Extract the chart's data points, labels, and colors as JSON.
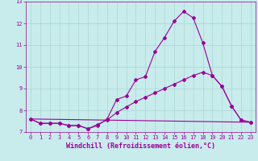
{
  "title": "",
  "xlabel": "Windchill (Refroidissement éolien,°C)",
  "ylabel": "",
  "background_color": "#c8ecec",
  "grid_color": "#aad4d4",
  "line_color": "#990099",
  "xlim": [
    -0.5,
    23.5
  ],
  "ylim": [
    7.0,
    13.0
  ],
  "xticks": [
    0,
    1,
    2,
    3,
    4,
    5,
    6,
    7,
    8,
    9,
    10,
    11,
    12,
    13,
    14,
    15,
    16,
    17,
    18,
    19,
    20,
    21,
    22,
    23
  ],
  "yticks": [
    7,
    8,
    9,
    10,
    11,
    12,
    13
  ],
  "curve1_x": [
    0,
    1,
    2,
    3,
    4,
    5,
    6,
    7,
    8,
    9,
    10,
    11,
    12,
    13,
    14,
    15,
    16,
    17,
    18,
    19,
    20,
    21,
    22,
    23
  ],
  "curve1_y": [
    7.6,
    7.4,
    7.4,
    7.4,
    7.3,
    7.3,
    7.15,
    7.3,
    7.6,
    8.5,
    8.65,
    9.4,
    9.55,
    10.7,
    11.35,
    12.1,
    12.55,
    12.25,
    11.1,
    9.6,
    9.1,
    8.2,
    7.55,
    7.45
  ],
  "curve2_x": [
    0,
    1,
    2,
    3,
    4,
    5,
    6,
    7,
    8,
    9,
    10,
    11,
    12,
    13,
    14,
    15,
    16,
    17,
    18,
    19,
    20,
    21,
    22,
    23
  ],
  "curve2_y": [
    7.6,
    7.4,
    7.4,
    7.4,
    7.3,
    7.3,
    7.15,
    7.35,
    7.55,
    7.9,
    8.15,
    8.4,
    8.6,
    8.8,
    9.0,
    9.2,
    9.4,
    9.6,
    9.75,
    9.6,
    9.1,
    8.2,
    7.55,
    7.45
  ],
  "curve3_x": [
    0,
    23
  ],
  "curve3_y": [
    7.6,
    7.45
  ],
  "marker": "D",
  "markersize": 2.0,
  "linewidth": 0.8,
  "tick_labelsize": 5.0,
  "xlabel_fontsize": 6.0
}
